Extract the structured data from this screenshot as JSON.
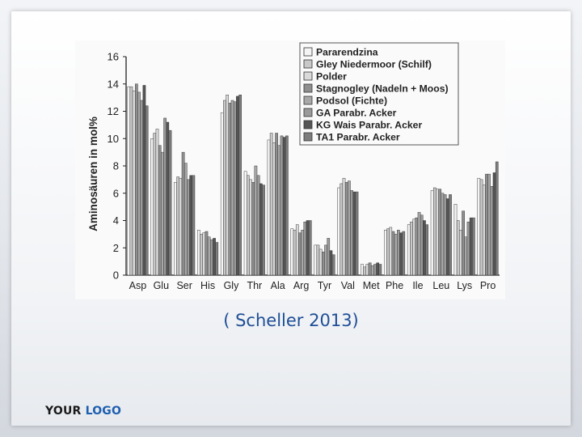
{
  "slide": {
    "citation": "( Scheller 2013)",
    "logo": {
      "word1": "YOUR",
      "word2": "LOGO"
    }
  },
  "chart_data": {
    "type": "bar",
    "title": "",
    "xlabel": "",
    "ylabel": "Aminosäuren in mol%",
    "ylim": [
      0,
      16
    ],
    "yticks": [
      0,
      2,
      4,
      6,
      8,
      10,
      12,
      14,
      16
    ],
    "grid": false,
    "legend_position": "top-right",
    "categories": [
      "Asp",
      "Glu",
      "Ser",
      "His",
      "Gly",
      "Thr",
      "Ala",
      "Arg",
      "Tyr",
      "Val",
      "Met",
      "Phe",
      "Ile",
      "Leu",
      "Lys",
      "Pro"
    ],
    "series": [
      {
        "name": "Pararendzina",
        "color": "#f4f4f4",
        "values": [
          13.8,
          10.0,
          6.8,
          3.3,
          11.9,
          7.6,
          9.9,
          3.4,
          2.2,
          6.4,
          0.8,
          3.3,
          3.7,
          6.2,
          5.2,
          7.1
        ]
      },
      {
        "name": "Gley Niedermoor (Schilf)",
        "color": "#c8c8c8",
        "values": [
          13.8,
          10.4,
          7.2,
          3.0,
          12.8,
          7.3,
          10.4,
          3.3,
          2.2,
          6.7,
          0.6,
          3.4,
          3.9,
          6.4,
          4.0,
          7.0
        ]
      },
      {
        "name": "Polder",
        "color": "#dadada",
        "values": [
          13.5,
          10.7,
          7.1,
          3.1,
          13.2,
          7.0,
          9.7,
          3.7,
          1.9,
          7.1,
          0.8,
          3.5,
          4.1,
          6.3,
          3.3,
          6.6
        ]
      },
      {
        "name": "Stagnogley (Nadeln + Moos)",
        "color": "#8f8f8f",
        "values": [
          14.0,
          9.5,
          9.0,
          3.2,
          12.6,
          6.8,
          10.4,
          3.1,
          1.7,
          6.8,
          0.9,
          3.2,
          4.2,
          6.3,
          4.7,
          7.4
        ]
      },
      {
        "name": "Podsol (Fichte)",
        "color": "#a8a8a8",
        "values": [
          13.4,
          9.0,
          8.2,
          2.8,
          12.8,
          8.0,
          9.5,
          3.3,
          2.2,
          6.9,
          0.7,
          3.0,
          4.6,
          6.0,
          2.8,
          7.4
        ]
      },
      {
        "name": "GA Parabr. Acker",
        "color": "#9a9a9a",
        "values": [
          12.8,
          11.5,
          7.0,
          2.6,
          12.7,
          7.3,
          10.2,
          3.9,
          2.7,
          6.2,
          0.8,
          3.3,
          4.4,
          5.9,
          3.9,
          6.5
        ]
      },
      {
        "name": "KG Wais Parabr. Acker",
        "color": "#555555",
        "values": [
          13.9,
          11.2,
          7.3,
          2.7,
          13.1,
          6.7,
          10.1,
          4.0,
          1.8,
          6.1,
          0.9,
          3.1,
          4.0,
          5.6,
          4.2,
          7.5
        ]
      },
      {
        "name": "TA1 Parabr. Acker",
        "color": "#7d7d7d",
        "values": [
          12.4,
          10.6,
          7.3,
          2.4,
          13.2,
          6.6,
          10.2,
          4.0,
          1.5,
          6.1,
          0.8,
          3.2,
          3.7,
          5.9,
          4.2,
          8.3
        ]
      }
    ]
  }
}
